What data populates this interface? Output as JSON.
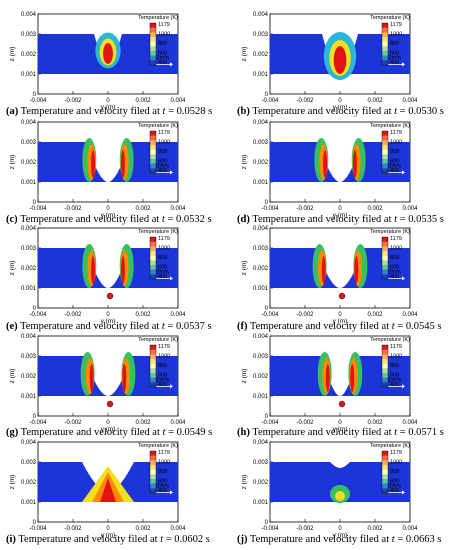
{
  "figure": {
    "axis_labels": {
      "x": "y (m)",
      "y": "z (m)"
    },
    "x_ticks": [
      "-0.004",
      "-0.002",
      "0",
      "0.002",
      "0.004"
    ],
    "y_ticks": [
      "0",
      "0.001",
      "0.002",
      "0.003",
      "0.004"
    ],
    "colorbar": {
      "title": "Temperature (K)",
      "labels": [
        "1179",
        "1000",
        "800",
        "600",
        "400"
      ],
      "colors": [
        "#d7191c",
        "#f46d43",
        "#fdae61",
        "#fee08b",
        "#ffffbf",
        "#abdda4",
        "#66c2a5",
        "#3288bd",
        "#1f3fbf"
      ]
    },
    "velocity_reference": "2m/s",
    "colors": {
      "melt_blue": "#1d34d6",
      "hot_red": "#e01414",
      "orange": "#ff8a00",
      "yellow": "#f0e020",
      "green": "#38c060",
      "cyan": "#2ab6d8"
    },
    "panels": [
      {
        "letter": "(a)",
        "caption": " Temperature and velocity filed at ",
        "t": "t",
        "time": " = 0.0528 s"
      },
      {
        "letter": "(b)",
        "caption": " Temperature and velocity filed at ",
        "t": "t",
        "time": " = 0.0530 s"
      },
      {
        "letter": "(c)",
        "caption": " Temperature and velocity filed at ",
        "t": "t",
        "time": " = 0.0532 s"
      },
      {
        "letter": "(d)",
        "caption": " Temperature and velocity filed at ",
        "t": "t",
        "time": " = 0.0535 s"
      },
      {
        "letter": "(e)",
        "caption": " Temperature and velocity filed at ",
        "t": "t",
        "time": " = 0.0537 s"
      },
      {
        "letter": "(f)",
        "caption": " Temperature and velocity filed at ",
        "t": "t",
        "time": " = 0.0545 s"
      },
      {
        "letter": "(g)",
        "caption": " Temperature and velocity filed at ",
        "t": "t",
        "time": " = 0.0549 s"
      },
      {
        "letter": "(h)",
        "caption": " Temperature and velocity filed at ",
        "t": "t",
        "time": " = 0.0571 s"
      },
      {
        "letter": "(i)",
        "caption": " Temperature and velocity filed at ",
        "t": "t",
        "time": " = 0.0602 s"
      },
      {
        "letter": "(j)",
        "caption": " Temperature and velocity filed at ",
        "t": "t",
        "time": " = 0.0663 s"
      }
    ]
  }
}
